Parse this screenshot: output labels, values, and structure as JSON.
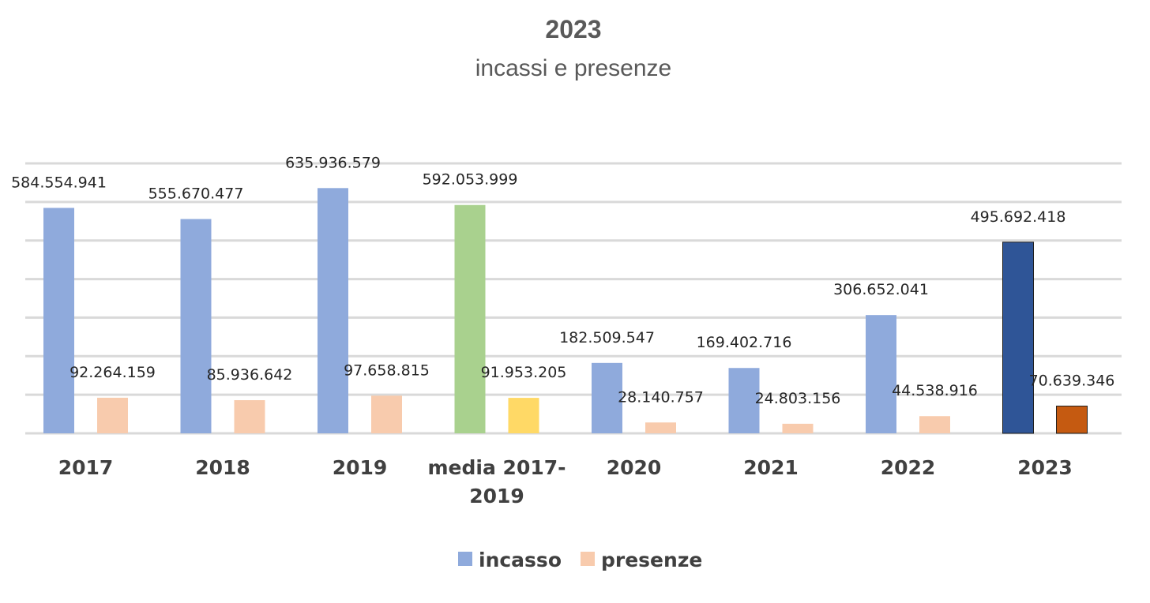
{
  "chart_data": {
    "type": "bar",
    "title": "2023",
    "subtitle": "incassi e presenze",
    "xlabel": "",
    "ylabel": "",
    "grid": true,
    "legend_position": "bottom",
    "ylim": [
      0,
      700000000
    ],
    "categories": [
      "2017",
      "2018",
      "2019",
      "media 2017-2019",
      "2020",
      "2021",
      "2022",
      "2023"
    ],
    "series": [
      {
        "name": "incasso",
        "color": "#8faadc",
        "values": [
          584554941,
          555670477,
          635936579,
          592053999,
          182509547,
          169402716,
          306652041,
          495692418
        ],
        "labels": [
          "584.554.941",
          "555.670.477",
          "635.936.579",
          "592.053.999",
          "182.509.547",
          "169.402.716",
          "306.652.041",
          "495.692.418"
        ],
        "highlight_colors": {
          "media 2017-2019": "#a9d18e",
          "2023": "#2f5597"
        }
      },
      {
        "name": "presenze",
        "color": "#f8cbad",
        "values": [
          92264159,
          85936642,
          97658815,
          91953205,
          28140757,
          24803156,
          44538916,
          70639346
        ],
        "labels": [
          "92.264.159",
          "85.936.642",
          "97.658.815",
          "91.953.205",
          "28.140.757",
          "24.803.156",
          "44.538.916",
          "70.639.346"
        ],
        "highlight_colors": {
          "media 2017-2019": "#ffd966",
          "2023": "#c55a11"
        }
      }
    ]
  }
}
